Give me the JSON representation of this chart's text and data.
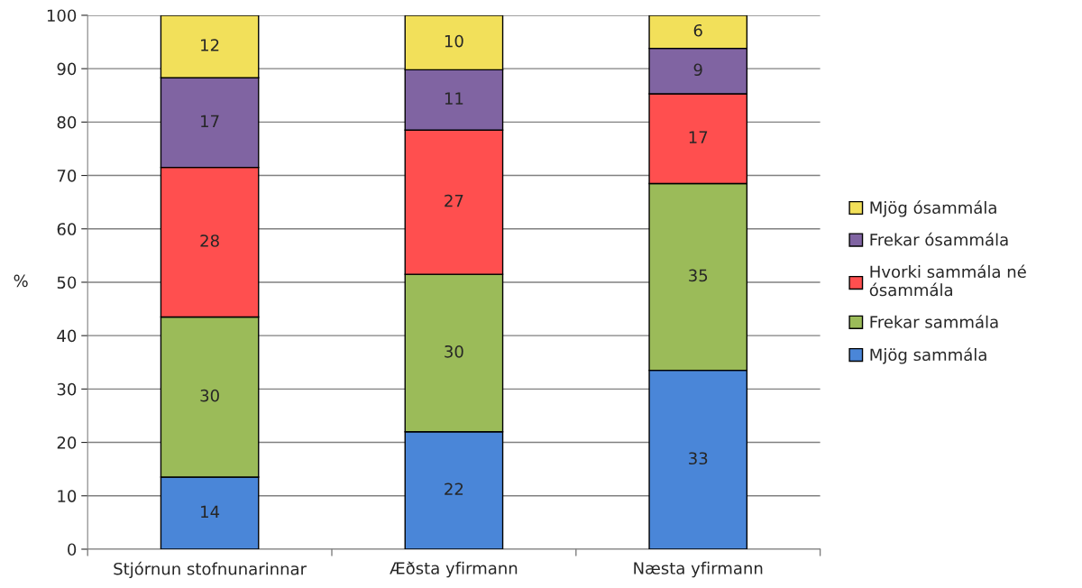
{
  "chart_data": {
    "type": "bar",
    "stacked": true,
    "ylabel": "%",
    "categories": [
      "Stjórnun stofnunarinnar",
      "Æðsta yfirmann",
      "Næsta yfirmann"
    ],
    "series": [
      {
        "name": "Mjög sammála",
        "color": "#4a86d8",
        "values": [
          13.5,
          22,
          33.5
        ],
        "value_labels": [
          "14",
          "22",
          "33"
        ]
      },
      {
        "name": "Frekar sammála",
        "color": "#9bbb59",
        "values": [
          30,
          29.5,
          35
        ],
        "value_labels": [
          "30",
          "30",
          "35"
        ]
      },
      {
        "name": "Hvorki sammála né\nósammála",
        "color": "#ff4f4f",
        "values": [
          28,
          27,
          16.8
        ],
        "value_labels": [
          "28",
          "27",
          "17"
        ]
      },
      {
        "name": "Frekar ósammála",
        "color": "#8064a2",
        "values": [
          16.8,
          11.3,
          8.5
        ],
        "value_labels": [
          "17",
          "11",
          "9"
        ]
      },
      {
        "name": "Mjög ósammála",
        "color": "#f2e05a",
        "values": [
          11.7,
          10.2,
          6.2
        ],
        "value_labels": [
          "12",
          "10",
          "6"
        ]
      }
    ],
    "ylim": [
      0,
      100
    ],
    "yticks": [
      0,
      10,
      20,
      30,
      40,
      50,
      60,
      70,
      80,
      90,
      100
    ],
    "grid": "y",
    "legend": "right"
  }
}
